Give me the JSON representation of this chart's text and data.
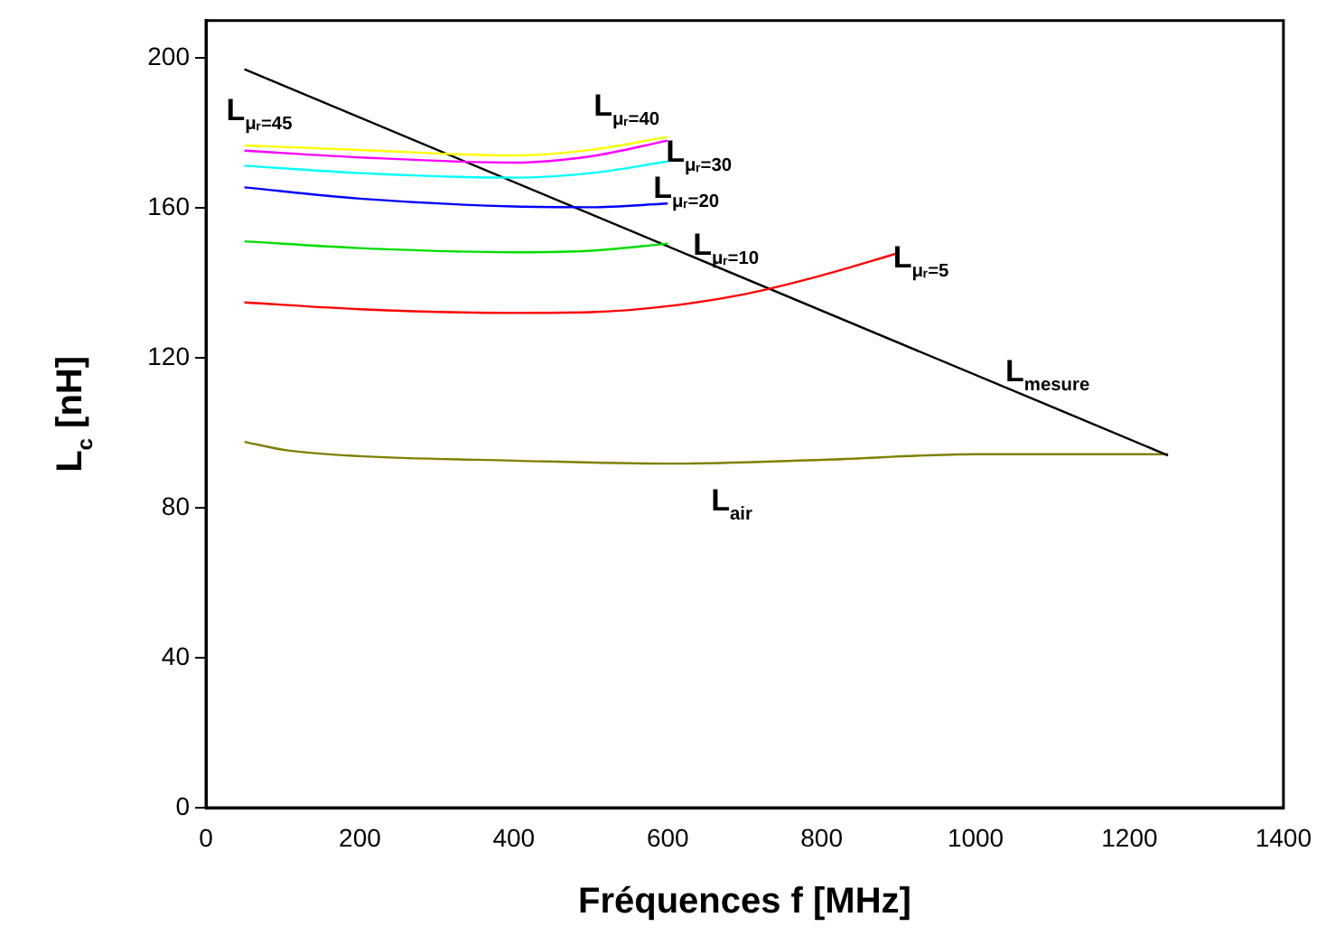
{
  "chart_data": {
    "type": "line",
    "xlabel": "Fréquences f [MHz]",
    "ylabel": "L$_{c}$ [nH]",
    "xlim": [
      0,
      1400
    ],
    "xticks": [
      0,
      200,
      400,
      600,
      800,
      1000,
      1200,
      1400
    ],
    "ylim": [
      0,
      210
    ],
    "yticks": [
      0,
      40,
      80,
      120,
      160,
      200
    ],
    "grid": false,
    "legend": false,
    "marker": "none",
    "line_style": "solid",
    "series": [
      {
        "name": "L$_{μᵣ=45}$",
        "color": "#ffff00",
        "x": [
          50,
          200,
          400,
          500,
          600
        ],
        "values": [
          176.7,
          175.5,
          174,
          175.5,
          179
        ]
      },
      {
        "name": "L$_{μᵣ=40}$",
        "color": "#ff00ff",
        "x": [
          50,
          200,
          400,
          500,
          600
        ],
        "values": [
          175.3,
          173.5,
          172.1,
          173.8,
          178
        ]
      },
      {
        "name": "L$_{μᵣ=30}$",
        "color": "#00ffff",
        "x": [
          50,
          200,
          400,
          500,
          600
        ],
        "values": [
          171.3,
          169.3,
          168.1,
          169.3,
          172.4
        ]
      },
      {
        "name": "L$_{μᵣ=20}$",
        "color": "#0000ff",
        "x": [
          50,
          200,
          400,
          500,
          600
        ],
        "values": [
          165.5,
          162.5,
          160.4,
          160.2,
          161.2
        ]
      },
      {
        "name": "L$_{μᵣ=10}$",
        "color": "#00dd00",
        "x": [
          50,
          200,
          400,
          500,
          600
        ],
        "values": [
          151.1,
          149.3,
          148.2,
          148.6,
          150.5
        ]
      },
      {
        "name": "L$_{μᵣ=5}$",
        "color": "#ff0000",
        "x": [
          50,
          200,
          400,
          500,
          600,
          700,
          800,
          900
        ],
        "values": [
          134.8,
          133,
          132,
          132.2,
          133.8,
          137,
          142,
          148
        ]
      },
      {
        "name": "L$_{mesure}$",
        "color": "#000000",
        "x": [
          50,
          1250
        ],
        "values": [
          197,
          94
        ]
      },
      {
        "name": "L$_{air}$",
        "color": "#808000",
        "x": [
          50,
          107,
          200,
          400,
          600,
          800,
          1000,
          1250
        ],
        "values": [
          97.6,
          95.3,
          93.8,
          92.6,
          91.8,
          92.8,
          94.3,
          94.3
        ]
      }
    ]
  }
}
